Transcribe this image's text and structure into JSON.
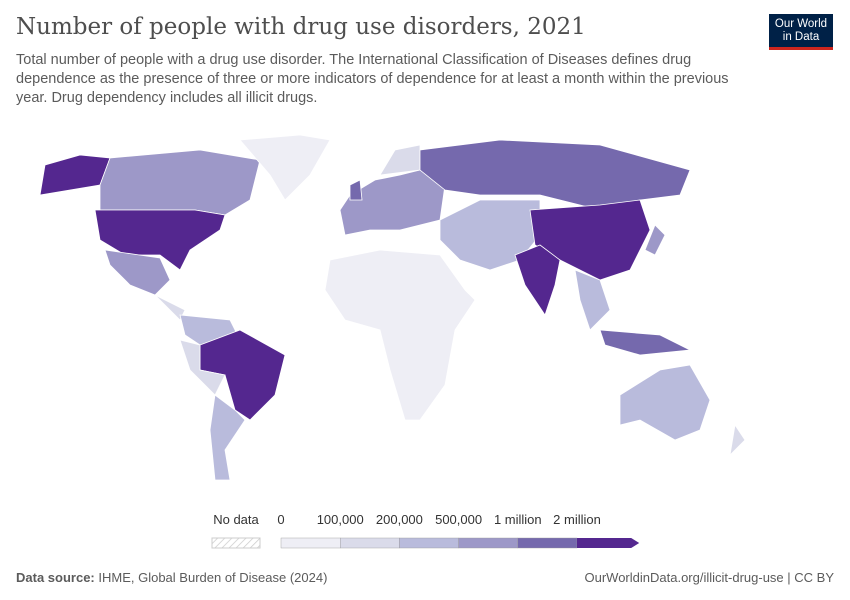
{
  "header": {
    "title": "Number of people with drug use disorders, 2021",
    "subtitle": "Total number of people with a drug use disorder. The International Classification of Diseases defines drug dependence as the presence of three or more indicators of dependence for at least a month within the previous year. Drug dependency includes all illicit drugs.",
    "logo": "Our World in Data"
  },
  "chart_data": {
    "type": "choropleth",
    "year": 2021,
    "legend": {
      "no_data_label": "No data",
      "bins": [
        "0",
        "100,000",
        "200,000",
        "500,000",
        "1 million",
        "2 million"
      ],
      "colors": [
        "#eeeef5",
        "#dadbea",
        "#b9bbdc",
        "#9d98c8",
        "#7569ad",
        "#54278f"
      ]
    },
    "regions": [
      {
        "name": "Alaska",
        "bin": 5
      },
      {
        "name": "Canada",
        "bin": 3
      },
      {
        "name": "Greenland",
        "bin": 0
      },
      {
        "name": "United States",
        "bin": 5
      },
      {
        "name": "Mexico",
        "bin": 3
      },
      {
        "name": "Central America",
        "bin": 1
      },
      {
        "name": "Colombia/Venezuela",
        "bin": 2
      },
      {
        "name": "Brazil",
        "bin": 5
      },
      {
        "name": "Peru/Bolivia",
        "bin": 1
      },
      {
        "name": "Argentina/Chile",
        "bin": 2
      },
      {
        "name": "Europe",
        "bin": 3
      },
      {
        "name": "Scandinavia",
        "bin": 1
      },
      {
        "name": "United Kingdom",
        "bin": 4
      },
      {
        "name": "Russia",
        "bin": 4
      },
      {
        "name": "Middle East & Central Asia",
        "bin": 2
      },
      {
        "name": "China",
        "bin": 5
      },
      {
        "name": "India",
        "bin": 5
      },
      {
        "name": "Southeast Asia",
        "bin": 2
      },
      {
        "name": "Indonesia",
        "bin": 4
      },
      {
        "name": "Japan",
        "bin": 3
      },
      {
        "name": "Africa",
        "bin": 0
      },
      {
        "name": "Australia",
        "bin": 2
      },
      {
        "name": "New Zealand",
        "bin": 1
      }
    ]
  },
  "footer": {
    "source_label": "Data source:",
    "source": "IHME, Global Burden of Disease (2024)",
    "link": "OurWorldinData.org/illicit-drug-use | CC BY"
  }
}
